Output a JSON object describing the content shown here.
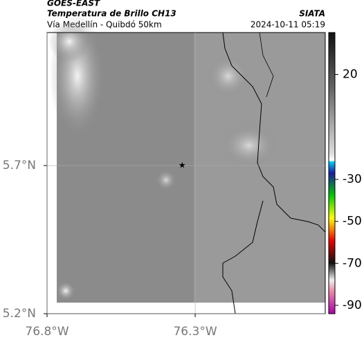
{
  "header": {
    "source": "GOES-EAST",
    "title": "Temperatura de Brillo CH13",
    "org": "SIATA",
    "route": "Vía Medellín - Quibdó 50km",
    "datetime": "2024-10-11 05:19"
  },
  "map": {
    "xlim": [
      -76.8,
      -75.861
    ],
    "ylim": [
      5.2,
      6.149
    ],
    "yticks": [
      {
        "value": 5.7,
        "label": "5.7°N"
      },
      {
        "value": 5.2,
        "label": "5.2°N"
      }
    ],
    "xticks": [
      {
        "value": -76.8,
        "label": "76.8°W"
      },
      {
        "value": -76.3,
        "label": "76.3°W"
      }
    ],
    "marker": {
      "lon": -76.344,
      "lat": 5.7
    }
  },
  "colorbar": {
    "lim": [
      -94,
      40
    ],
    "ticks": [
      20,
      -30,
      -50,
      -70,
      -90
    ]
  }
}
